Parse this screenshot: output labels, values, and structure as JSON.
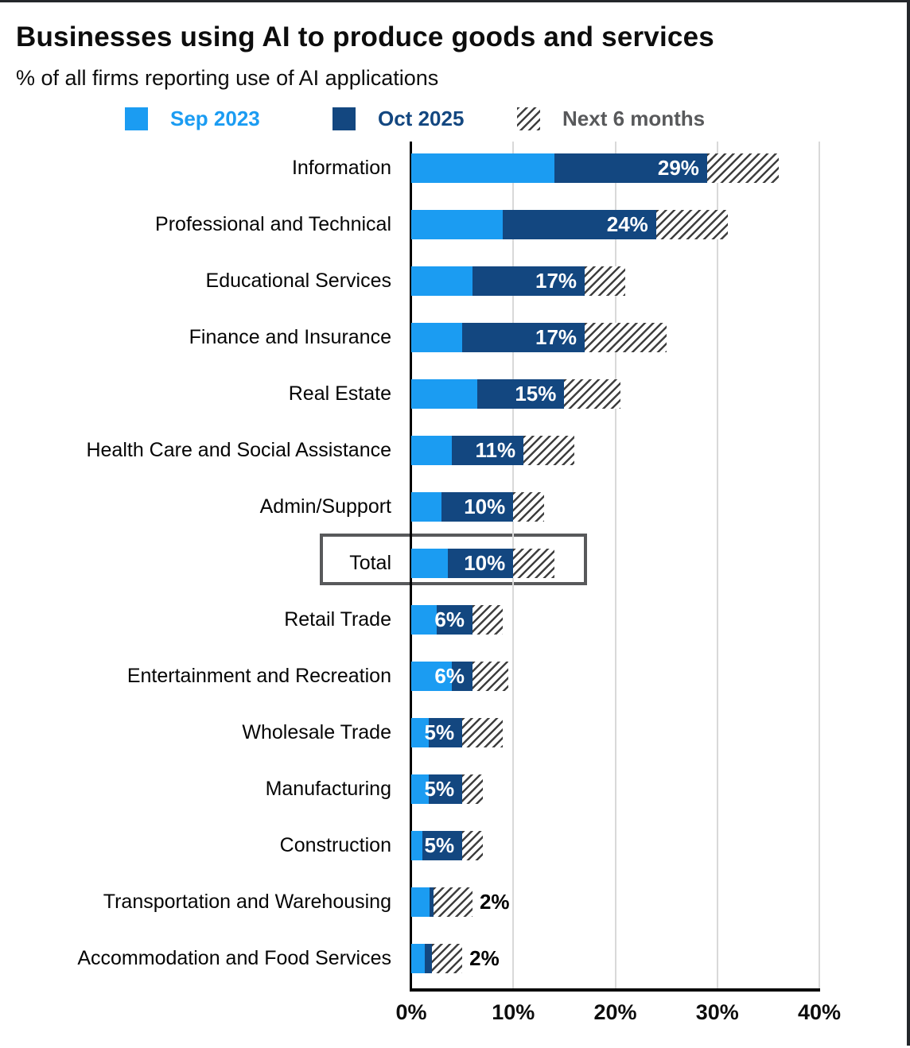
{
  "chart_data": {
    "type": "bar",
    "orientation": "horizontal",
    "title": "Businesses using AI to produce goods and services",
    "subtitle": "% of all firms reporting use of AI applications",
    "legend": [
      {
        "label": "Sep 2023",
        "color": "#1b9cf2",
        "pattern": "solid"
      },
      {
        "label": "Oct 2025",
        "color": "#134780",
        "pattern": "solid"
      },
      {
        "label": "Next 6 months",
        "color": "#3f3f3f",
        "pattern": "diagonal-hatch"
      }
    ],
    "legend_position": "top",
    "x_ticks": [
      "0%",
      "10%",
      "20%",
      "30%",
      "40%"
    ],
    "xlim": [
      0,
      40
    ],
    "grid": "vertical",
    "value_unit": "% of firms",
    "highlighted_category": "Total",
    "rows": [
      {
        "category": "Information",
        "sep2023": 14,
        "oct2025": 29,
        "next6m": 36,
        "label": "29%",
        "label_outside": false
      },
      {
        "category": "Professional and Technical",
        "sep2023": 9,
        "oct2025": 24,
        "next6m": 31,
        "label": "24%",
        "label_outside": false
      },
      {
        "category": "Educational Services",
        "sep2023": 6,
        "oct2025": 17,
        "next6m": 21,
        "label": "17%",
        "label_outside": false
      },
      {
        "category": "Finance and Insurance",
        "sep2023": 5,
        "oct2025": 17,
        "next6m": 25,
        "label": "17%",
        "label_outside": false
      },
      {
        "category": "Real Estate",
        "sep2023": 6.5,
        "oct2025": 15,
        "next6m": 20.5,
        "label": "15%",
        "label_outside": false
      },
      {
        "category": "Health Care and Social Assistance",
        "sep2023": 4,
        "oct2025": 11,
        "next6m": 16,
        "label": "11%",
        "label_outside": false
      },
      {
        "category": "Admin/Support",
        "sep2023": 3,
        "oct2025": 10,
        "next6m": 13,
        "label": "10%",
        "label_outside": false
      },
      {
        "category": "Total",
        "sep2023": 3.6,
        "oct2025": 10,
        "next6m": 14,
        "label": "10%",
        "label_outside": false
      },
      {
        "category": "Retail Trade",
        "sep2023": 2.5,
        "oct2025": 6,
        "next6m": 9,
        "label": "6%",
        "label_outside": false
      },
      {
        "category": "Entertainment and Recreation",
        "sep2023": 4,
        "oct2025": 6,
        "next6m": 9.5,
        "label": "6%",
        "label_outside": false
      },
      {
        "category": "Wholesale Trade",
        "sep2023": 1.7,
        "oct2025": 5,
        "next6m": 9,
        "label": "5%",
        "label_outside": false
      },
      {
        "category": "Manufacturing",
        "sep2023": 1.7,
        "oct2025": 5,
        "next6m": 7,
        "label": "5%",
        "label_outside": false
      },
      {
        "category": "Construction",
        "sep2023": 1.1,
        "oct2025": 5,
        "next6m": 7,
        "label": "5%",
        "label_outside": false
      },
      {
        "category": "Transportation and Warehousing",
        "sep2023": 1.8,
        "oct2025": 2.2,
        "next6m": 6,
        "label": "2%",
        "label_outside": true
      },
      {
        "category": "Accommodation and Food Services",
        "sep2023": 1.3,
        "oct2025": 2,
        "next6m": 5,
        "label": "2%",
        "label_outside": true
      }
    ]
  },
  "colors": {
    "sep2023": "#1b9cf2",
    "oct2025": "#134780",
    "hatch_stripe": "#3f3f3f",
    "legend_next6m_text": "#58595b",
    "gridline": "#d9d9d9",
    "axis": "#000000",
    "highlight_box_border": "#58595b",
    "bar_label_inside": "#ffffff",
    "bar_label_outside": "#000000",
    "frame_border": "#24272b"
  }
}
